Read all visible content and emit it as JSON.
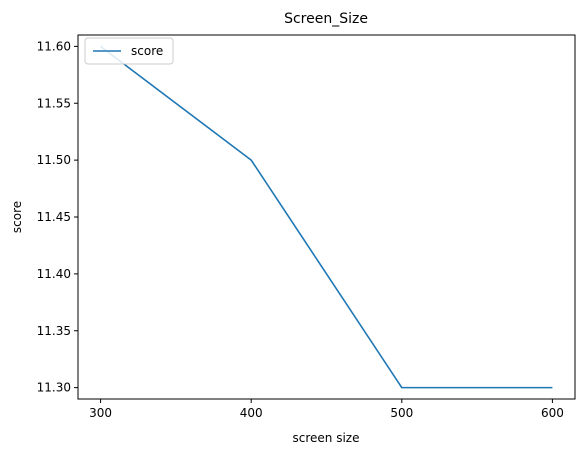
{
  "chart_data": {
    "type": "line",
    "title": "Screen_Size",
    "xlabel": "screen size",
    "ylabel": "score",
    "x": [
      300,
      400,
      500,
      600
    ],
    "series": [
      {
        "name": "score",
        "values": [
          11.6,
          11.5,
          11.3,
          11.3
        ],
        "color": "#1f77b4"
      }
    ],
    "xticks": [
      "300",
      "400",
      "500",
      "600"
    ],
    "xtick_values": [
      300,
      400,
      500,
      600
    ],
    "yticks": [
      "11.30",
      "11.35",
      "11.40",
      "11.45",
      "11.50",
      "11.55",
      "11.60"
    ],
    "ytick_values": [
      11.3,
      11.35,
      11.4,
      11.45,
      11.5,
      11.55,
      11.6
    ],
    "xlim": [
      285,
      615
    ],
    "ylim": [
      11.29,
      11.61
    ],
    "grid": false,
    "legend_position": "upper left"
  }
}
